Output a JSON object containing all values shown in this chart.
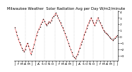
{
  "title": "Milwaukee Weather  Solar Radiation Avg per Day W/m2/minute",
  "line_color": "#ff0000",
  "dot_color": "#000000",
  "grid_color": "#bbbbbb",
  "bg_color": "#ffffff",
  "ylim": [
    -3.8,
    4.2
  ],
  "yticks": [
    4,
    3,
    2,
    1,
    0,
    -1,
    -2,
    -3
  ],
  "values": [
    1.5,
    0.8,
    0.2,
    -0.4,
    -0.9,
    -1.3,
    -1.8,
    -2.1,
    -2.4,
    -2.0,
    -1.5,
    -1.0,
    -1.5,
    -2.0,
    -2.8,
    -2.4,
    -1.8,
    -1.2,
    -0.5,
    0.2,
    0.8,
    1.2,
    1.6,
    2.0,
    2.4,
    2.8,
    2.5,
    2.0,
    1.8,
    2.1,
    2.4,
    2.2,
    2.6,
    3.0,
    3.2,
    3.5,
    3.8,
    3.4,
    3.0,
    2.6,
    2.2,
    1.8,
    1.4,
    1.0,
    0.5,
    0.0,
    -0.5,
    -1.0,
    -1.5,
    -2.0,
    -2.5,
    -3.0,
    -3.3,
    -3.5,
    -3.2,
    -2.8,
    -2.4,
    -1.8,
    -1.2,
    -0.8,
    -0.3,
    0.3,
    0.8,
    1.3,
    1.8,
    2.2,
    2.6,
    3.0,
    2.6,
    2.2,
    1.8,
    2.2,
    2.6,
    3.0,
    2.6,
    2.2,
    1.8,
    1.4,
    1.0,
    0.8,
    0.6,
    0.4,
    0.2,
    0.0,
    -0.2,
    -0.4,
    -0.6,
    -0.4,
    -0.2,
    0.0,
    0.2
  ],
  "vline_positions": [
    9,
    18,
    26,
    35,
    44,
    52,
    61,
    69,
    78,
    86
  ],
  "xtick_every": 3,
  "xlabel_labels": [
    "J",
    "F",
    "M",
    "A",
    "M",
    "J",
    "J",
    "A",
    "S",
    "O",
    "N",
    "D",
    "J",
    "F",
    "M",
    "A",
    "M",
    "J",
    "J",
    "A",
    "S",
    "O",
    "N",
    "D",
    "J",
    "F",
    "M",
    "A",
    "M",
    "J"
  ],
  "title_fontsize": 3.8,
  "tick_fontsize": 3.2,
  "line_width": 0.5,
  "marker_size": 0.7,
  "dash_pattern": [
    2,
    1.5
  ]
}
